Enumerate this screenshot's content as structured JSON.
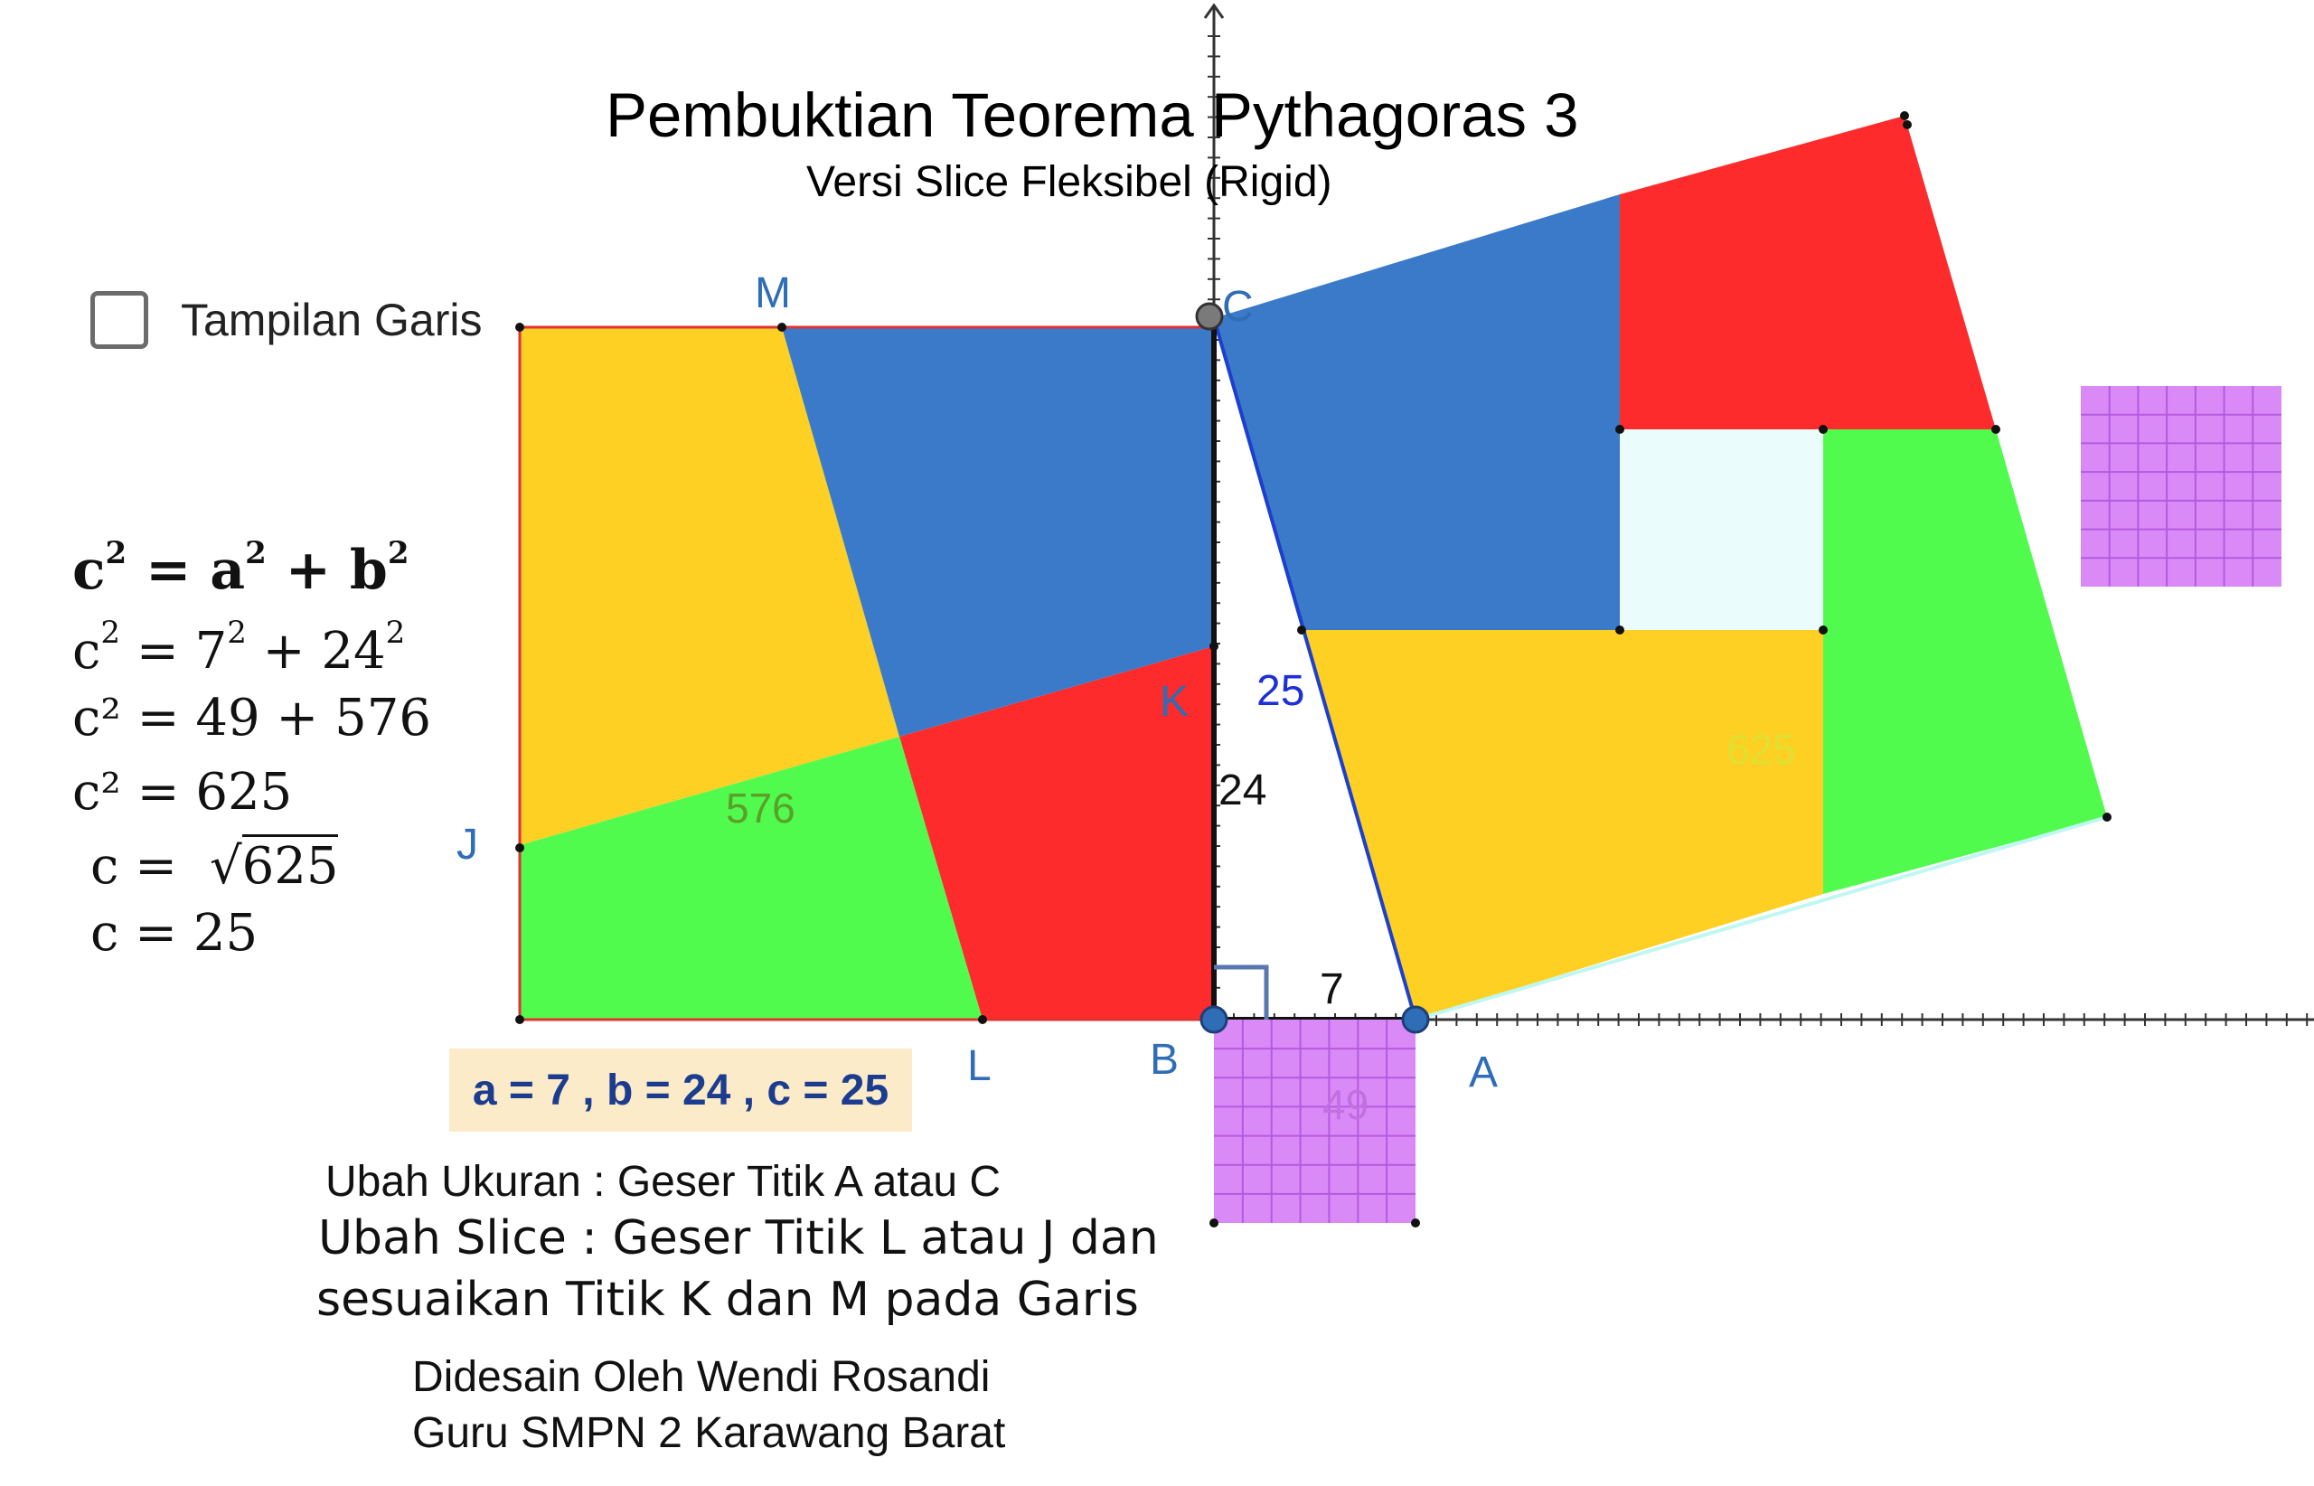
{
  "title": "Pembuktian Teorema Pythagoras 3",
  "subtitle": "Versi Slice Fleksibel (Rigid)",
  "checkbox": {
    "label": "Tampilan Garis",
    "checked": false
  },
  "equations": {
    "line1": {
      "lhs": "c",
      "rhs": "= a",
      "mid": "+ b",
      "exp": "2"
    },
    "line2": {
      "lhs": "c",
      "eq": "=",
      "a": "7",
      "plus": "+",
      "b": "24",
      "exp": "2"
    },
    "line3": "c² = 49 + 576",
    "line4": "c² = 625",
    "line5_lhs": "c =",
    "line5_radicand": "625",
    "line6": "c = 25"
  },
  "values_box": "a = 7 , b = 24 , c = 25",
  "instructions": {
    "line1": "Ubah Ukuran : Geser Titik A atau C",
    "line2": "Ubah Slice : Geser Titik L atau J dan",
    "line3": "sesuaikan Titik K dan M pada  Garis"
  },
  "credits": {
    "line1": "Didesain Oleh Wendi Rosandi",
    "line2": "Guru SMPN 2 Karawang Barat"
  },
  "points": {
    "M": "M",
    "C": "C",
    "J": "J",
    "K": "K",
    "L": "L",
    "B": "B",
    "A": "A"
  },
  "side_labels": {
    "hyp": "25",
    "vertical": "24",
    "horizontal": "7"
  },
  "area_labels": {
    "left_square": "576",
    "big_square": "625",
    "small_square": "49"
  },
  "colors": {
    "yellow": "#fdd023",
    "blue": "#3a7ac8",
    "red": "#fd2b2b",
    "green": "#51fb4d",
    "purple": "#da8af7",
    "center": "#eafcfc",
    "point_blue": "#2f6db6",
    "hyp_line": "#1c3fd0"
  }
}
